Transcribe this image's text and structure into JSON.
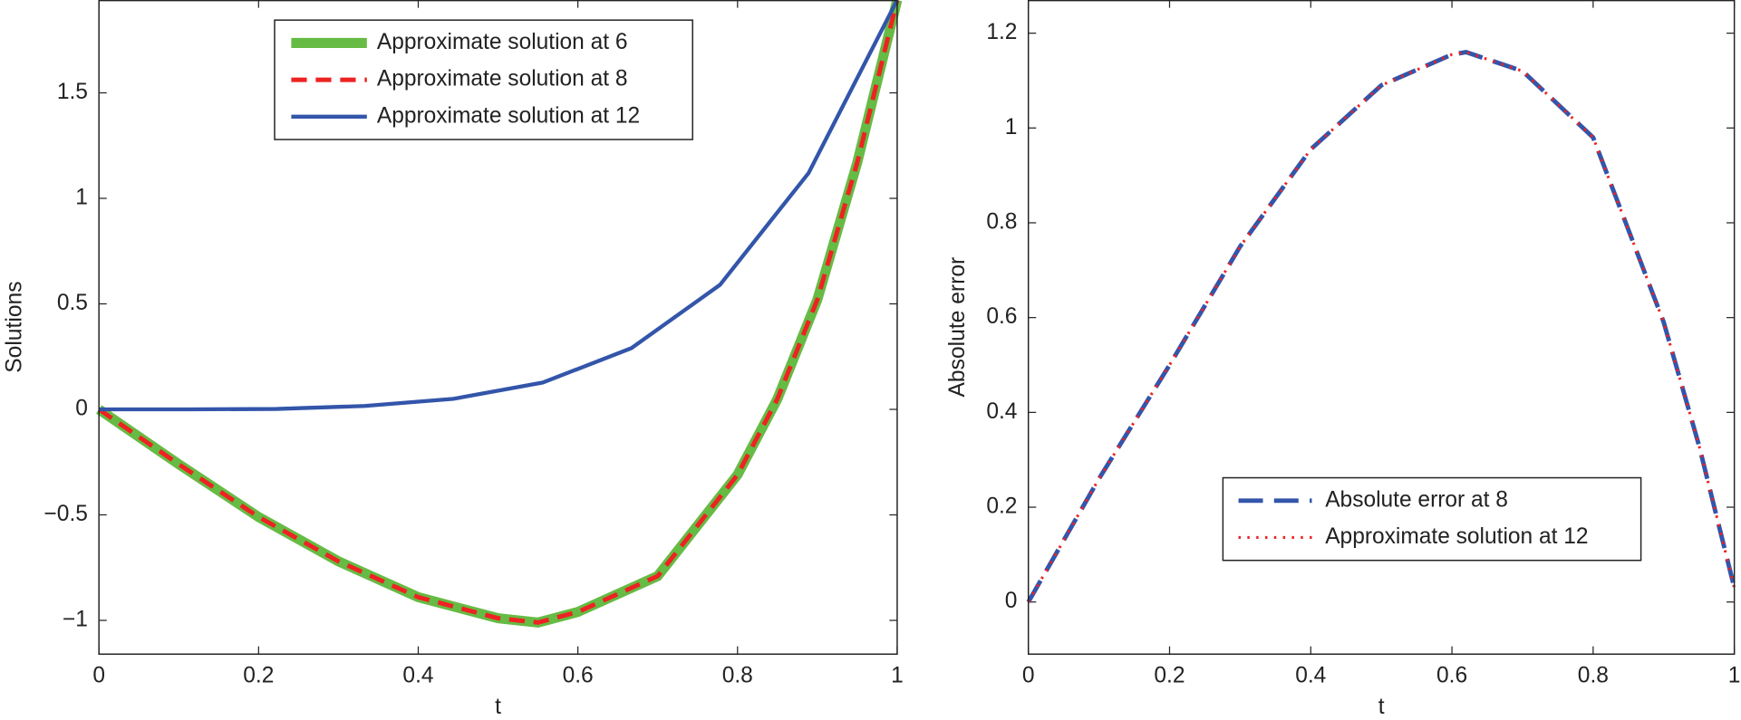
{
  "chart_data": [
    {
      "type": "line",
      "xlabel": "t",
      "ylabel": "Solutions",
      "xlim": [
        0,
        1
      ],
      "ylim": [
        -1.16,
        1.94
      ],
      "xticks": [
        0,
        0.2,
        0.4,
        0.6,
        0.8,
        1
      ],
      "yticks": [
        {
          "value": -1,
          "label": "−1"
        },
        {
          "value": -0.5,
          "label": "−0.5"
        },
        0,
        0.5,
        1,
        1.5
      ],
      "series": [
        {
          "name": "Approximate solution at 6",
          "color": "#66bb44",
          "x": [
            0,
            0.1,
            0.2,
            0.3,
            0.4,
            0.5,
            0.55,
            0.6,
            0.7,
            0.8,
            0.85,
            0.9,
            0.95,
            1
          ],
          "values": [
            0,
            -0.26,
            -0.51,
            -0.72,
            -0.89,
            -0.99,
            -1.01,
            -0.96,
            -0.79,
            -0.31,
            0.05,
            0.52,
            1.17,
            1.94
          ]
        },
        {
          "name": "Approximate solution at 8",
          "color": "#ee2222",
          "x": [
            0,
            0.1,
            0.2,
            0.3,
            0.4,
            0.5,
            0.55,
            0.6,
            0.7,
            0.8,
            0.85,
            0.9,
            0.95,
            1
          ],
          "values": [
            0,
            -0.26,
            -0.51,
            -0.72,
            -0.89,
            -0.99,
            -1.01,
            -0.96,
            -0.79,
            -0.31,
            0.05,
            0.52,
            1.17,
            1.94
          ]
        },
        {
          "name": "Approximate solution at 12",
          "color": "#3355aa",
          "x": [
            0,
            0.111,
            0.222,
            0.333,
            0.444,
            0.556,
            0.667,
            0.778,
            0.889,
            1
          ],
          "values": [
            0,
            0,
            0.002,
            0.016,
            0.05,
            0.127,
            0.29,
            0.59,
            1.12,
            1.94
          ]
        }
      ]
    },
    {
      "type": "line",
      "xlabel": "t",
      "ylabel": "Absolute error",
      "xlim": [
        0,
        1
      ],
      "ylim": [
        -0.11,
        1.27
      ],
      "xticks": [
        0,
        0.2,
        0.4,
        0.6,
        0.8,
        1
      ],
      "yticks": [
        0,
        0.2,
        0.4,
        0.6,
        0.8,
        1,
        1.2
      ],
      "series": [
        {
          "name": "Absolute error at 8",
          "color": "#3355aa",
          "x": [
            0,
            0.1,
            0.2,
            0.3,
            0.4,
            0.5,
            0.6,
            0.62,
            0.7,
            0.8,
            0.9,
            0.95,
            1
          ],
          "values": [
            0,
            0.26,
            0.5,
            0.75,
            0.955,
            1.09,
            1.155,
            1.16,
            1.12,
            0.98,
            0.59,
            0.33,
            0.03
          ]
        },
        {
          "name": "Approximate solution at 12",
          "color": "#ee2222",
          "x": [
            0,
            0.1,
            0.2,
            0.3,
            0.4,
            0.5,
            0.6,
            0.62,
            0.7,
            0.8,
            0.9,
            0.95,
            1
          ],
          "values": [
            0,
            0.26,
            0.5,
            0.75,
            0.955,
            1.09,
            1.155,
            1.16,
            1.12,
            0.98,
            0.59,
            0.33,
            0.03
          ]
        }
      ]
    }
  ]
}
